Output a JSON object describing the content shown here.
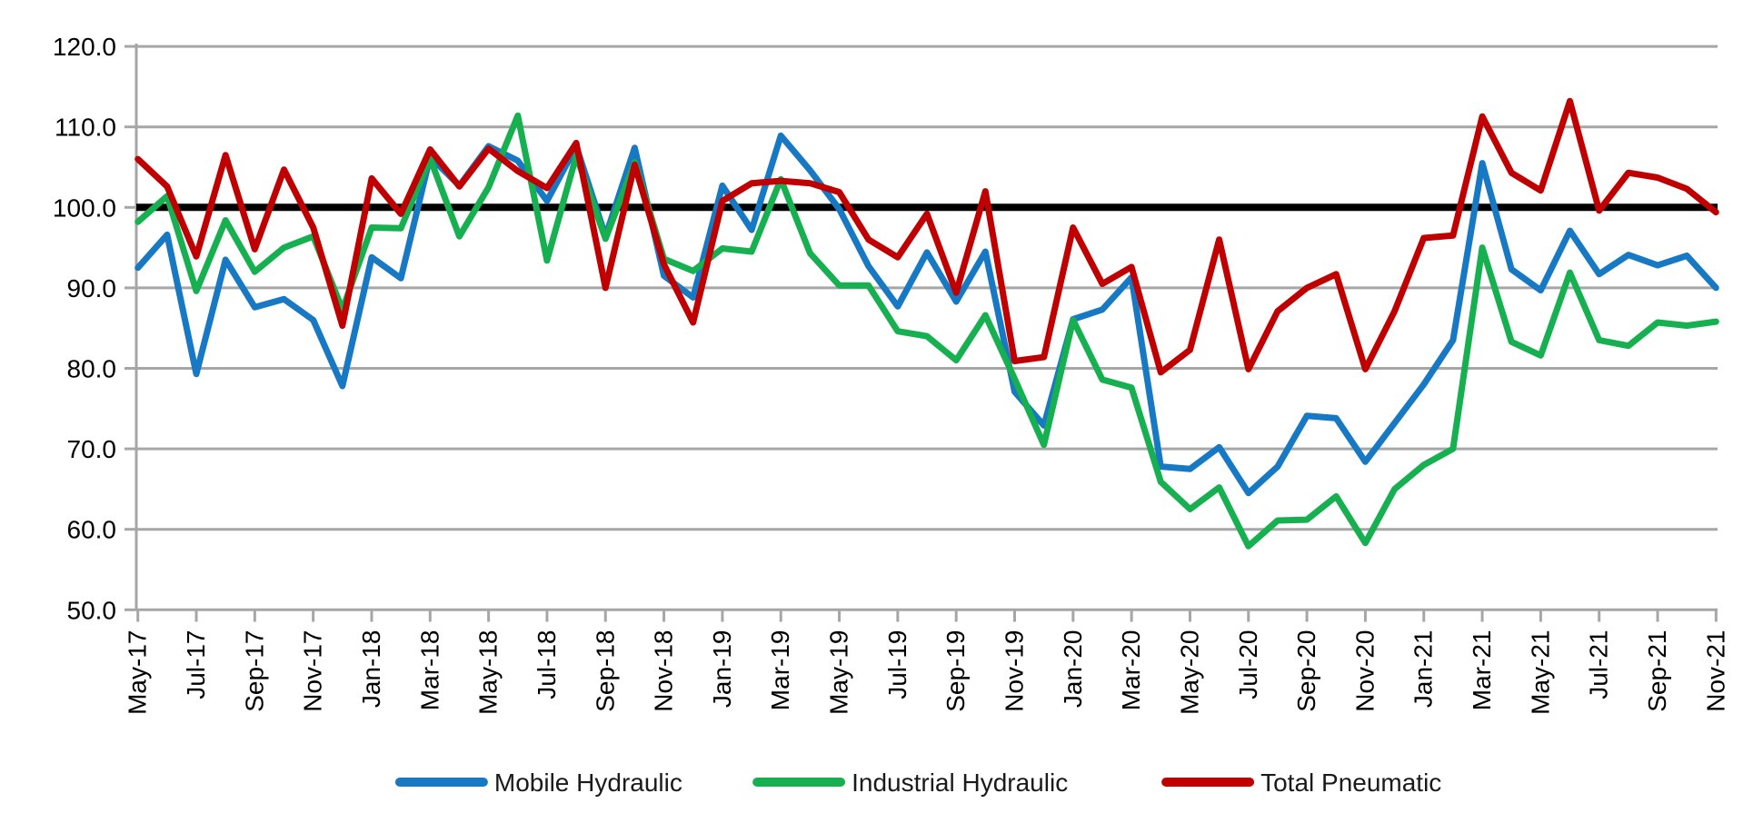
{
  "chart_data": {
    "type": "line",
    "title": "",
    "xlabel": "",
    "ylabel": "",
    "grid": "horizontal",
    "gridline_color": "#A6A6A6",
    "axis_color": "#A6A6A6",
    "background": "#FFFFFF",
    "legend_position": "bottom",
    "ylim": [
      50,
      120
    ],
    "y_axis": {
      "min": 50,
      "max": 120,
      "step": 10,
      "decimals": 1
    },
    "x_tick_every": 2,
    "reference_line": {
      "value": 100.0,
      "color": "#000000"
    },
    "x_categories": [
      "May-17",
      "Jun-17",
      "Jul-17",
      "Aug-17",
      "Sep-17",
      "Oct-17",
      "Nov-17",
      "Dec-17",
      "Jan-18",
      "Feb-18",
      "Mar-18",
      "Apr-18",
      "May-18",
      "Jun-18",
      "Jul-18",
      "Aug-18",
      "Sep-18",
      "Oct-18",
      "Nov-18",
      "Dec-18",
      "Jan-19",
      "Feb-19",
      "Mar-19",
      "Apr-19",
      "May-19",
      "Jun-19",
      "Jul-19",
      "Aug-19",
      "Sep-19",
      "Oct-19",
      "Nov-19",
      "Dec-19",
      "Jan-20",
      "Feb-20",
      "Mar-20",
      "Apr-20",
      "May-20",
      "Jun-20",
      "Jul-20",
      "Aug-20",
      "Sep-20",
      "Oct-20",
      "Nov-20",
      "Dec-20",
      "Jan-21",
      "Feb-21",
      "Mar-21",
      "Apr-21",
      "May-21",
      "Jun-21",
      "Jul-21",
      "Aug-21",
      "Sep-21",
      "Oct-21",
      "Nov-21"
    ],
    "series": [
      {
        "name": "Mobile Hydraulic",
        "color": "#1779C4",
        "values": [
          92.5,
          96.6,
          79.3,
          93.5,
          87.6,
          88.6,
          86.0,
          77.8,
          93.8,
          91.2,
          106.3,
          102.7,
          107.6,
          105.8,
          100.8,
          107.6,
          96.4,
          107.4,
          91.5,
          88.8,
          102.7,
          97.2,
          108.9,
          104.6,
          99.8,
          92.7,
          87.7,
          94.4,
          88.3,
          94.5,
          77.1,
          72.9,
          86.1,
          87.3,
          91.3,
          67.8,
          67.5,
          70.2,
          64.5,
          67.8,
          74.1,
          73.8,
          68.4,
          73.2,
          78.0,
          83.5,
          105.5,
          92.3,
          89.7,
          97.1,
          91.7,
          94.1,
          92.8,
          94.0,
          90.0
        ]
      },
      {
        "name": "Industrial Hydraulic",
        "color": "#17B050",
        "values": [
          98.2,
          101.4,
          89.6,
          98.4,
          92.0,
          95.0,
          96.4,
          87.3,
          97.5,
          97.4,
          106.1,
          96.4,
          102.5,
          111.4,
          93.4,
          106.4,
          96.1,
          105.6,
          93.6,
          92.1,
          94.9,
          94.5,
          103.5,
          94.3,
          90.3,
          90.3,
          84.6,
          84.0,
          81.0,
          86.6,
          78.7,
          70.5,
          86.0,
          78.6,
          77.6,
          65.9,
          62.5,
          65.2,
          57.9,
          61.1,
          61.2,
          64.1,
          58.3,
          65.0,
          68.0,
          70.0,
          95.0,
          83.3,
          81.6,
          91.9,
          83.5,
          82.8,
          85.7,
          85.3,
          85.8
        ]
      },
      {
        "name": "Total Pneumatic",
        "color": "#C00000",
        "values": [
          106.0,
          102.6,
          93.9,
          106.5,
          94.8,
          104.7,
          97.5,
          85.3,
          103.6,
          99.2,
          107.2,
          102.6,
          107.3,
          104.5,
          102.4,
          108.0,
          90.0,
          105.3,
          92.9,
          85.7,
          100.8,
          103.0,
          103.3,
          103.0,
          101.9,
          96.0,
          93.8,
          99.2,
          89.4,
          102.0,
          80.9,
          81.4,
          97.5,
          90.5,
          92.6,
          79.5,
          82.3,
          96.0,
          79.9,
          87.1,
          90.0,
          91.7,
          79.9,
          87.1,
          96.2,
          96.5,
          111.3,
          104.3,
          102.1,
          113.2,
          99.6,
          104.3,
          103.7,
          102.3,
          99.4
        ]
      }
    ]
  }
}
